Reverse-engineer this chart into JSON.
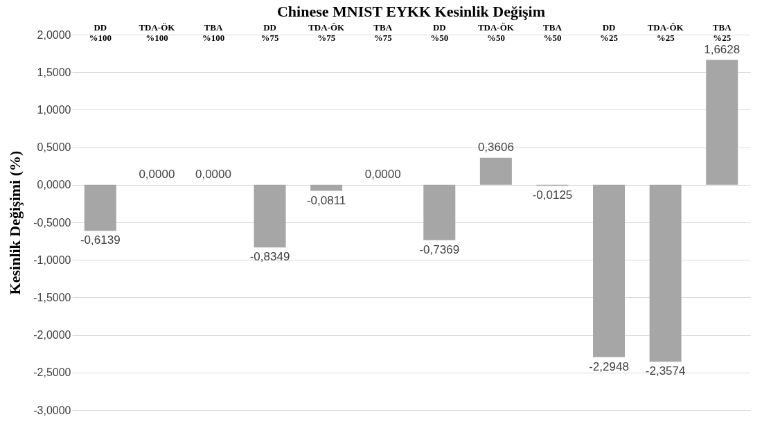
{
  "chart_data": {
    "type": "bar",
    "title": "Chinese MNIST EYKK Kesinlik Değişim",
    "ylabel": "Kesinlik Değişimi (%)",
    "categories": [
      "DD %100",
      "TDA-ÖK %100",
      "TBA %100",
      "DD %75",
      "TDA-ÖK %75",
      "TBA %75",
      "DD %50",
      "TDA-ÖK %50",
      "TBA %50",
      "DD %25",
      "TDA-ÖK %25",
      "TBA %25"
    ],
    "values": [
      -0.6139,
      0,
      0,
      -0.8349,
      -0.0811,
      0,
      -0.7369,
      0.3606,
      -0.0125,
      -2.2948,
      -2.3574,
      1.6628
    ],
    "value_labels": [
      "-0,6139",
      "0,0000",
      "0,0000",
      "-0,8349",
      "-0,0811",
      "0,0000",
      "-0,7369",
      "0,3606",
      "-0,0125",
      "-2,2948",
      "-2,3574",
      "1,6628"
    ],
    "color": "#a6a6a6",
    "ylim": [
      -3,
      2
    ],
    "yticks": [
      {
        "value": -3,
        "label": "-3,0000"
      },
      {
        "value": -2.5,
        "label": "-2,5000"
      },
      {
        "value": -2,
        "label": "-2,0000"
      },
      {
        "value": -1.5,
        "label": "-1,5000"
      },
      {
        "value": -1,
        "label": "-1,0000"
      },
      {
        "value": -0.5,
        "label": "-0,5000"
      },
      {
        "value": 0,
        "label": "0,0000"
      },
      {
        "value": 0.5,
        "label": "0,5000"
      },
      {
        "value": 1,
        "label": "1,0000"
      },
      {
        "value": 1.5,
        "label": "1,5000"
      },
      {
        "value": 2,
        "label": "2,0000"
      }
    ],
    "grid": "y"
  }
}
